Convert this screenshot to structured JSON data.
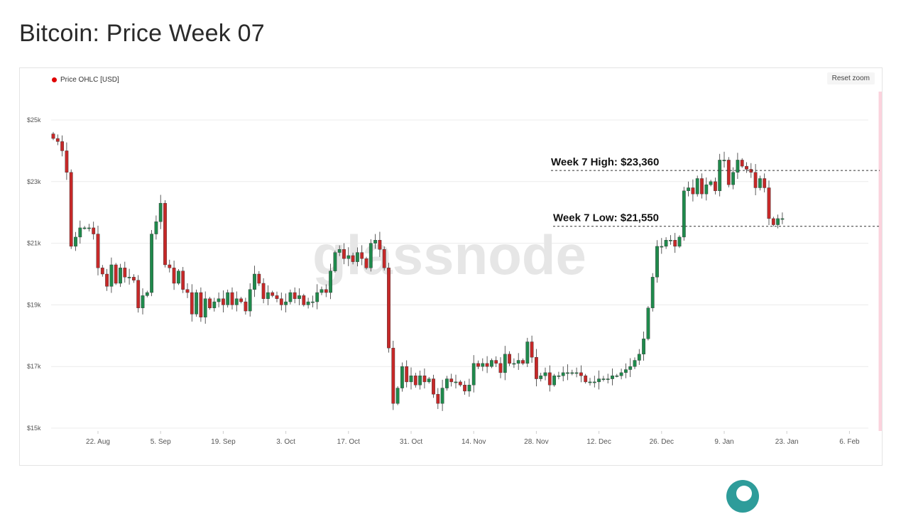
{
  "page": {
    "title": "Bitcoin: Price Week 07"
  },
  "chart": {
    "legend_label": "Price OHLC [USD]",
    "legend_color": "#e00000",
    "reset_zoom_label": "Reset zoom",
    "watermark": "glassnode",
    "up_color": "#1f8a4c",
    "down_color": "#c62828",
    "highlight_color": "#fbd3dd"
  },
  "chart_data": {
    "type": "candlestick",
    "title": "Bitcoin: Price Week 07",
    "series_name": "Price OHLC [USD]",
    "ylim": [
      15000,
      25000
    ],
    "y_ticks": [
      {
        "value": 15000,
        "label": "$15k"
      },
      {
        "value": 17000,
        "label": "$17k"
      },
      {
        "value": 19000,
        "label": "$19k"
      },
      {
        "value": 21000,
        "label": "$21k"
      },
      {
        "value": 23000,
        "label": "$23k"
      },
      {
        "value": 25000,
        "label": "$25k"
      }
    ],
    "x_start_date": "2022-08-12",
    "x_ticks": [
      {
        "date": "2022-08-22",
        "label": "22. Aug"
      },
      {
        "date": "2022-09-05",
        "label": "5. Sep"
      },
      {
        "date": "2022-09-19",
        "label": "19. Sep"
      },
      {
        "date": "2022-10-03",
        "label": "3. Oct"
      },
      {
        "date": "2022-10-17",
        "label": "17. Oct"
      },
      {
        "date": "2022-10-31",
        "label": "31. Oct"
      },
      {
        "date": "2022-11-14",
        "label": "14. Nov"
      },
      {
        "date": "2022-11-28",
        "label": "28. Nov"
      },
      {
        "date": "2022-12-12",
        "label": "12. Dec"
      },
      {
        "date": "2022-12-26",
        "label": "26. Dec"
      },
      {
        "date": "2023-01-09",
        "label": "9. Jan"
      },
      {
        "date": "2023-01-23",
        "label": "23. Jan"
      },
      {
        "date": "2023-02-06",
        "label": "6. Feb"
      }
    ],
    "highlight_range": {
      "start": "2023-02-13",
      "end": "2023-02-19"
    },
    "annotations": [
      {
        "label": "Week 7 High: $23,360",
        "value": 23360
      },
      {
        "label": "Week 7 Low: $21,550",
        "value": 21550
      }
    ],
    "closes": [
      24400,
      24300,
      24000,
      23300,
      20900,
      21200,
      21500,
      21500,
      21500,
      21300,
      20200,
      20000,
      19600,
      20300,
      19700,
      20200,
      19900,
      19900,
      19800,
      18900,
      19300,
      19400,
      21300,
      21700,
      22300,
      20300,
      20200,
      19700,
      20100,
      19500,
      19400,
      18700,
      19400,
      18600,
      19200,
      18900,
      19100,
      19200,
      19000,
      19400,
      19000,
      19200,
      19100,
      18800,
      19500,
      20000,
      19700,
      19200,
      19400,
      19300,
      19200,
      19000,
      19100,
      19400,
      19200,
      19300,
      19000,
      19100,
      19100,
      19400,
      19500,
      19400,
      20100,
      20700,
      20800,
      20500,
      20600,
      20400,
      20700,
      20500,
      20200,
      21000,
      21100,
      20800,
      20200,
      17600,
      15800,
      16300,
      17000,
      16500,
      16700,
      16400,
      16700,
      16500,
      16600,
      16100,
      15800,
      16300,
      16600,
      16500,
      16500,
      16400,
      16200,
      16400,
      17100,
      17000,
      17100,
      17000,
      17200,
      17100,
      16800,
      17400,
      17100,
      17100,
      17200,
      17100,
      17800,
      17300,
      16600,
      16700,
      16800,
      16400,
      16700,
      16700,
      16800,
      16800,
      16800,
      16800,
      16700,
      16500,
      16500,
      16500,
      16600,
      16600,
      16600,
      16700,
      16700,
      16800,
      16900,
      17000,
      17200,
      17400,
      17900,
      18900,
      19900,
      20900,
      20900,
      21100,
      21100,
      20900,
      21200,
      22700,
      22800,
      22600,
      23100,
      22600,
      22900,
      23000,
      22700,
      23700,
      23700,
      22900,
      23300,
      23700,
      23500,
      23400,
      23300,
      22800,
      23100,
      22800,
      21800,
      21600,
      21800,
      21800
    ]
  }
}
